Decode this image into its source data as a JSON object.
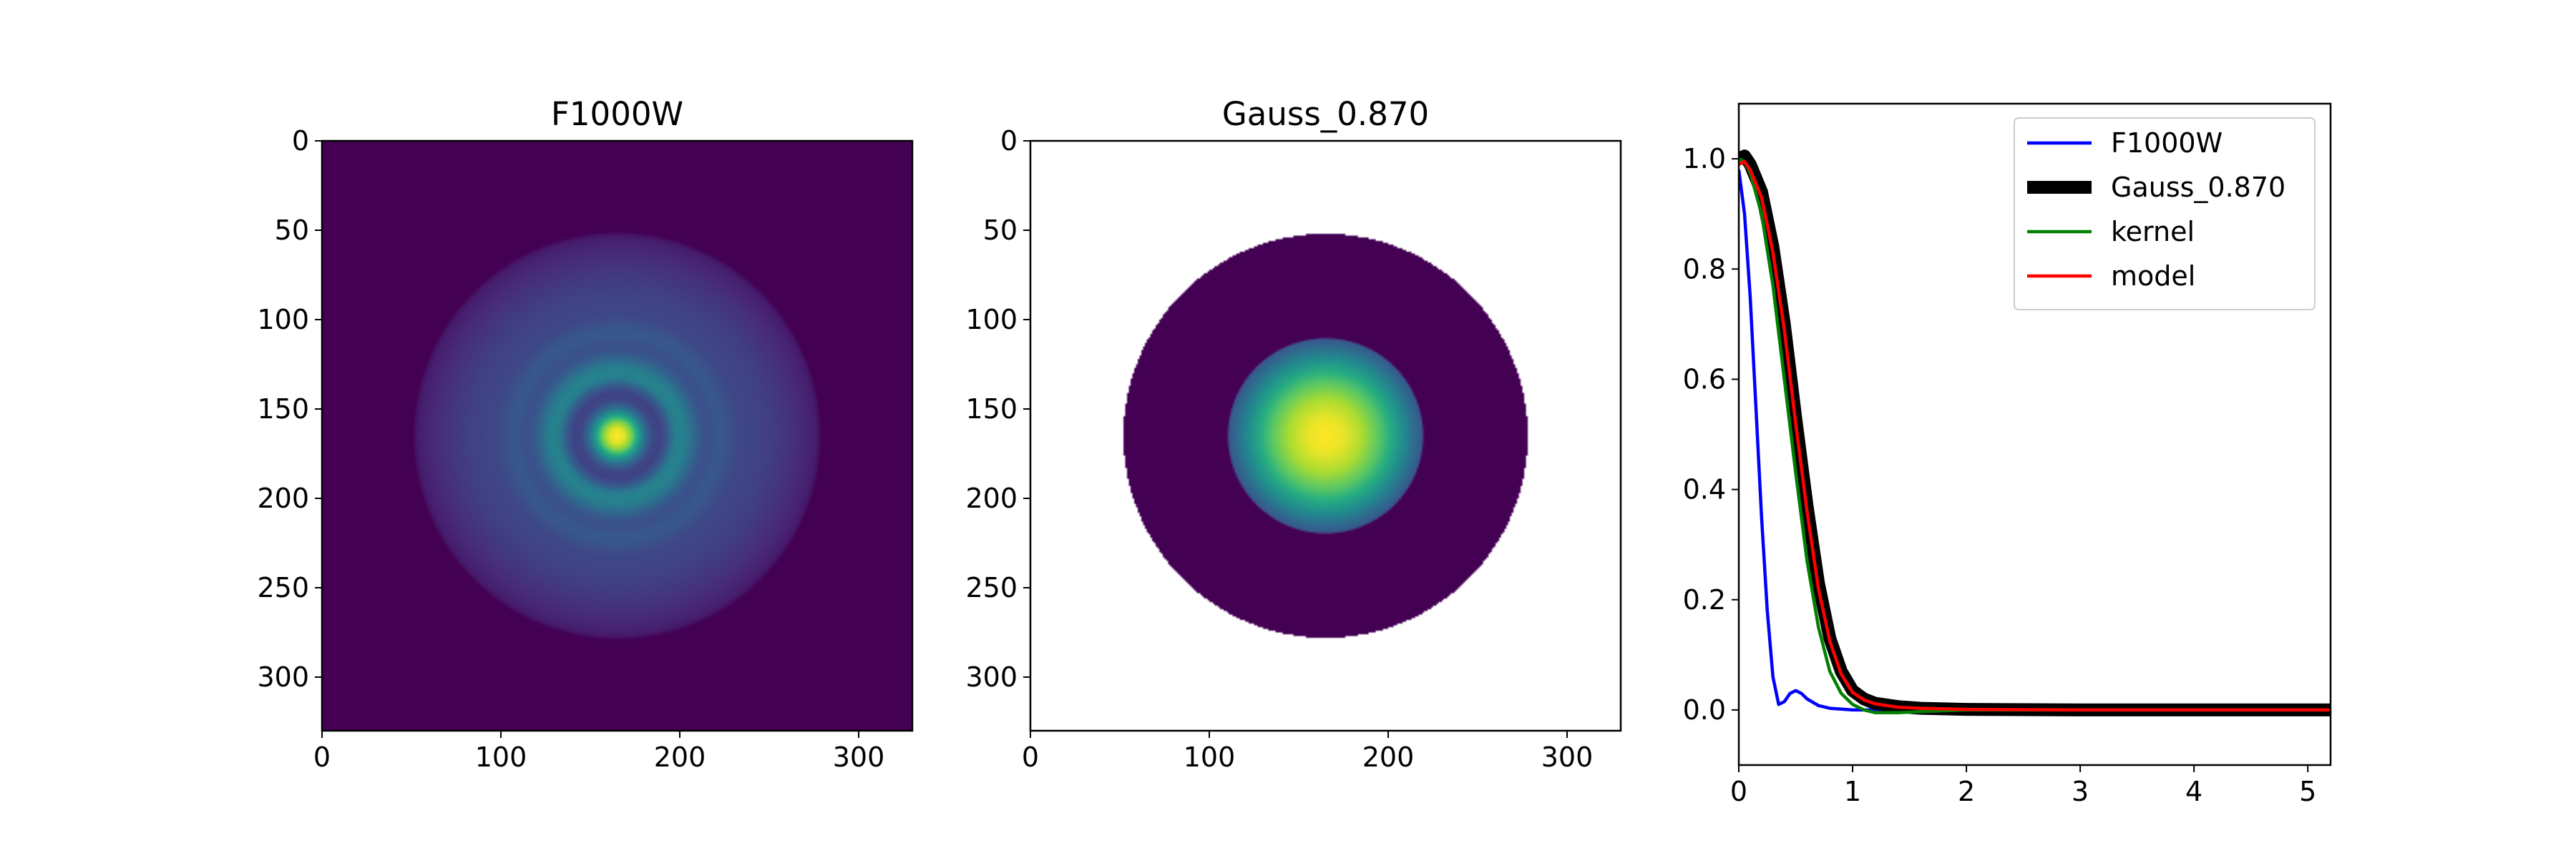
{
  "chart_data": [
    {
      "type": "heatmap",
      "title": "F1000W",
      "colormap": "viridis",
      "description_of_values": "radial Airy-like PSF: bright core, dark ring, faint outer rings; zero outside radius ~113",
      "center": [
        165,
        165
      ],
      "xlim": [
        0,
        330
      ],
      "ylim": [
        330,
        0
      ],
      "xticks": [
        0,
        100,
        200,
        300
      ],
      "yticks": [
        0,
        50,
        100,
        150,
        200,
        250,
        300
      ],
      "xticklabels": [
        "0",
        "100",
        "200",
        "300"
      ],
      "yticklabels": [
        "0",
        "50",
        "100",
        "150",
        "200",
        "250",
        "300"
      ],
      "radial_profile": {
        "r": [
          0,
          4,
          8,
          12,
          16,
          20,
          24,
          28,
          32,
          36,
          40,
          44,
          48,
          52,
          56,
          60,
          64,
          68,
          72,
          80,
          90,
          100,
          110,
          113,
          114
        ],
        "v": [
          1.0,
          0.96,
          0.8,
          0.55,
          0.35,
          0.22,
          0.2,
          0.28,
          0.42,
          0.45,
          0.4,
          0.32,
          0.26,
          0.25,
          0.28,
          0.27,
          0.24,
          0.22,
          0.21,
          0.2,
          0.17,
          0.13,
          0.09,
          0.05,
          0.0
        ]
      }
    },
    {
      "type": "heatmap",
      "title": "Gauss_0.870",
      "colormap": "viridis",
      "description_of_values": "Gaussian core inside a disk of radius ~113; NaN (white) outside the disk",
      "center": [
        165,
        165
      ],
      "xlim": [
        0,
        330
      ],
      "ylim": [
        330,
        0
      ],
      "xticks": [
        0,
        100,
        200,
        300
      ],
      "yticks": [
        0,
        50,
        100,
        150,
        200,
        250,
        300
      ],
      "xticklabels": [
        "0",
        "100",
        "200",
        "300"
      ],
      "yticklabels": [
        "0",
        "50",
        "100",
        "150",
        "200",
        "250",
        "300"
      ],
      "radial_profile": {
        "r": [
          0,
          10,
          20,
          30,
          40,
          50,
          54,
          55,
          113
        ],
        "v": [
          1.0,
          0.97,
          0.88,
          0.74,
          0.55,
          0.35,
          0.28,
          0.0,
          0.0
        ]
      },
      "disk_radius": 113
    },
    {
      "type": "line",
      "title": "",
      "xlabel": "",
      "ylabel": "",
      "xlim": [
        0,
        5.2
      ],
      "ylim": [
        -0.1,
        1.1
      ],
      "xticks": [
        0,
        1,
        2,
        3,
        4,
        5
      ],
      "yticks": [
        0.0,
        0.2,
        0.4,
        0.6,
        0.8,
        1.0
      ],
      "xticklabels": [
        "0",
        "1",
        "2",
        "3",
        "4",
        "5"
      ],
      "yticklabels": [
        "0.0",
        "0.2",
        "0.4",
        "0.6",
        "0.8",
        "1.0"
      ],
      "legend_position": "upper right",
      "series": [
        {
          "name": "F1000W",
          "color": "#0000ff",
          "x": [
            0,
            0.05,
            0.1,
            0.15,
            0.2,
            0.25,
            0.3,
            0.35,
            0.4,
            0.45,
            0.5,
            0.55,
            0.6,
            0.7,
            0.8,
            1.0,
            1.2,
            1.5,
            2.0,
            3.0,
            4.0,
            5.2
          ],
          "y": [
            0.98,
            0.9,
            0.75,
            0.55,
            0.35,
            0.18,
            0.06,
            0.01,
            0.015,
            0.03,
            0.035,
            0.03,
            0.02,
            0.008,
            0.003,
            0.0,
            0.0,
            0.0,
            0.0,
            0.0,
            0.0,
            0.0
          ]
        },
        {
          "name": "Gauss_0.870",
          "color": "#000000",
          "x": [
            0,
            0.05,
            0.1,
            0.2,
            0.3,
            0.4,
            0.5,
            0.6,
            0.7,
            0.8,
            0.9,
            1.0,
            1.1,
            1.2,
            1.4,
            1.6,
            2.0,
            3.0,
            4.0,
            5.2
          ],
          "y": [
            1.0,
            1.005,
            0.99,
            0.94,
            0.84,
            0.7,
            0.53,
            0.37,
            0.23,
            0.13,
            0.07,
            0.035,
            0.02,
            0.012,
            0.006,
            0.003,
            0.001,
            0.0,
            0.0,
            0.0
          ]
        },
        {
          "name": "kernel",
          "color": "#008000",
          "x": [
            0,
            0.05,
            0.1,
            0.2,
            0.3,
            0.4,
            0.5,
            0.6,
            0.7,
            0.8,
            0.9,
            1.0,
            1.1,
            1.2,
            1.4,
            1.6,
            2.0,
            3.0,
            4.0,
            5.2
          ],
          "y": [
            1.0,
            0.995,
            0.975,
            0.9,
            0.77,
            0.6,
            0.43,
            0.27,
            0.15,
            0.07,
            0.03,
            0.01,
            0.0,
            -0.005,
            -0.005,
            -0.003,
            0.0,
            0.0,
            0.0,
            0.0
          ]
        },
        {
          "name": "model",
          "color": "#ff0000",
          "x": [
            0,
            0.05,
            0.1,
            0.2,
            0.3,
            0.4,
            0.5,
            0.6,
            0.7,
            0.8,
            0.9,
            1.0,
            1.1,
            1.2,
            1.4,
            1.6,
            2.0,
            3.0,
            4.0,
            5.2
          ],
          "y": [
            0.99,
            0.995,
            0.98,
            0.93,
            0.83,
            0.69,
            0.52,
            0.36,
            0.22,
            0.125,
            0.065,
            0.032,
            0.018,
            0.011,
            0.005,
            0.003,
            0.001,
            0.0,
            0.0,
            0.0
          ]
        }
      ]
    }
  ]
}
